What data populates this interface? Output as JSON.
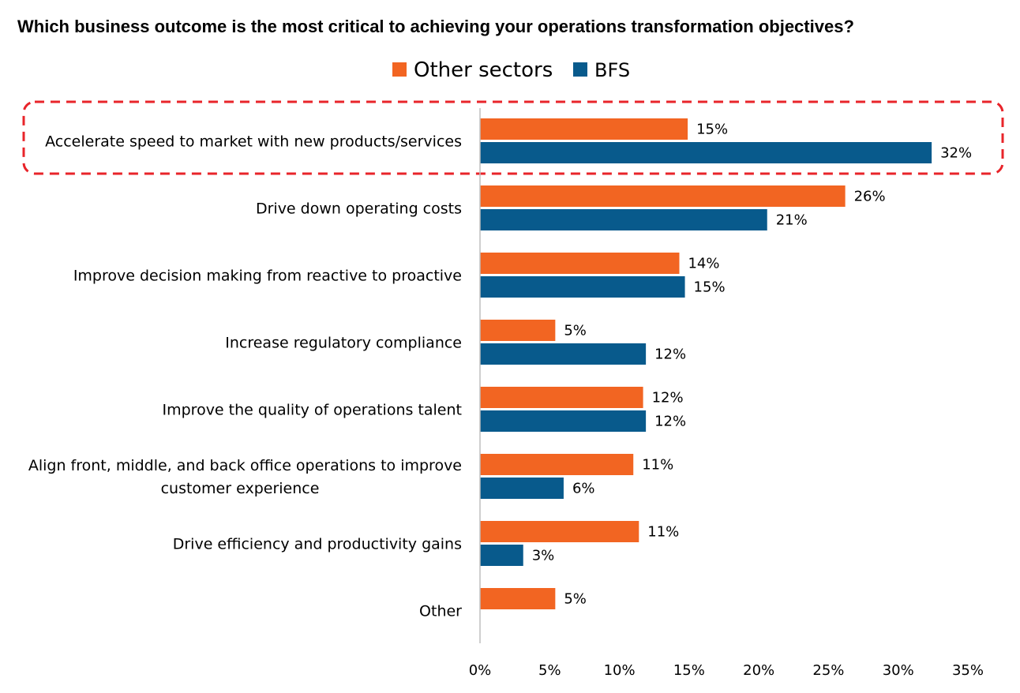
{
  "chart_data": {
    "type": "bar",
    "orientation": "horizontal",
    "title": "Which business outcome is the most critical to achieving your operations transformation objectives?",
    "categories": [
      [
        "Accelerate speed to market with new products/services"
      ],
      [
        "Drive down operating costs"
      ],
      [
        "Improve decision making from reactive to proactive"
      ],
      [
        "Increase regulatory compliance"
      ],
      [
        "Improve the quality of operations talent"
      ],
      [
        "Align front, middle, and back office operations to improve",
        "customer experience"
      ],
      [
        "Drive efficiency and productivity gains"
      ],
      [
        "Other"
      ]
    ],
    "series": [
      {
        "name": "Other sectors",
        "color": "#F26522",
        "values": [
          14.9,
          26.2,
          14.3,
          5.4,
          11.7,
          11.0,
          11.4,
          5.4
        ],
        "labels": [
          "15%",
          "26%",
          "14%",
          "5%",
          "12%",
          "11%",
          "11%",
          "5%"
        ]
      },
      {
        "name": "BFS",
        "color": "#085A8C",
        "values": [
          32.4,
          20.6,
          14.7,
          11.9,
          11.9,
          6.0,
          3.1,
          null
        ],
        "labels": [
          "32%",
          "21%",
          "15%",
          "12%",
          "12%",
          "6%",
          "3%",
          null
        ]
      }
    ],
    "xlim": [
      0,
      35
    ],
    "xticks": [
      0,
      5,
      10,
      15,
      20,
      25,
      30,
      35
    ],
    "xtick_labels": [
      "0%",
      "5%",
      "10%",
      "15%",
      "20%",
      "25%",
      "30%",
      "35%"
    ],
    "grid": false,
    "legend_position": "top-center",
    "highlight": {
      "category_index": 0,
      "style": "dashed-box",
      "color": "#E8242A"
    }
  }
}
